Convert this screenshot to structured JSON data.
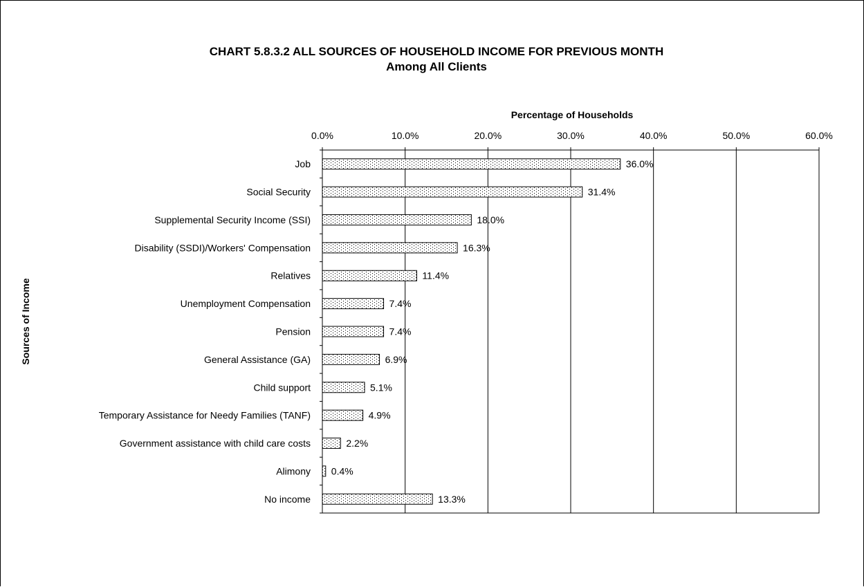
{
  "chart_data": {
    "type": "bar",
    "orientation": "horizontal",
    "title": "CHART 5.8.3.2   ALL SOURCES OF HOUSEHOLD INCOME FOR PREVIOUS MONTH",
    "subtitle": "Among All Clients",
    "xlabel": "Percentage of Households",
    "ylabel": "Sources of Income",
    "xlim": [
      0,
      60
    ],
    "x_axis_position": "top",
    "xticks": [
      "0.0%",
      "10.0%",
      "20.0%",
      "30.0%",
      "40.0%",
      "50.0%",
      "60.0%"
    ],
    "grid": "vertical",
    "legend": "none",
    "bar_fill": "dotted",
    "categories": [
      "Job",
      "Social Security",
      "Supplemental Security Income (SSI)",
      "Disability (SSDI)/Workers' Compensation",
      "Relatives",
      "Unemployment Compensation",
      "Pension",
      "General Assistance (GA)",
      "Child support",
      "Temporary Assistance for Needy Families (TANF)",
      "Government assistance with child care costs",
      "Alimony",
      "No income"
    ],
    "values": [
      36.0,
      31.4,
      18.0,
      16.3,
      11.4,
      7.4,
      7.4,
      6.9,
      5.1,
      4.9,
      2.2,
      0.4,
      13.3
    ],
    "value_labels": [
      "36.0%",
      "31.4%",
      "18.0%",
      "16.3%",
      "11.4%",
      "7.4%",
      "7.4%",
      "6.9%",
      "5.1%",
      "4.9%",
      "2.2%",
      "0.4%",
      "13.3%"
    ]
  }
}
